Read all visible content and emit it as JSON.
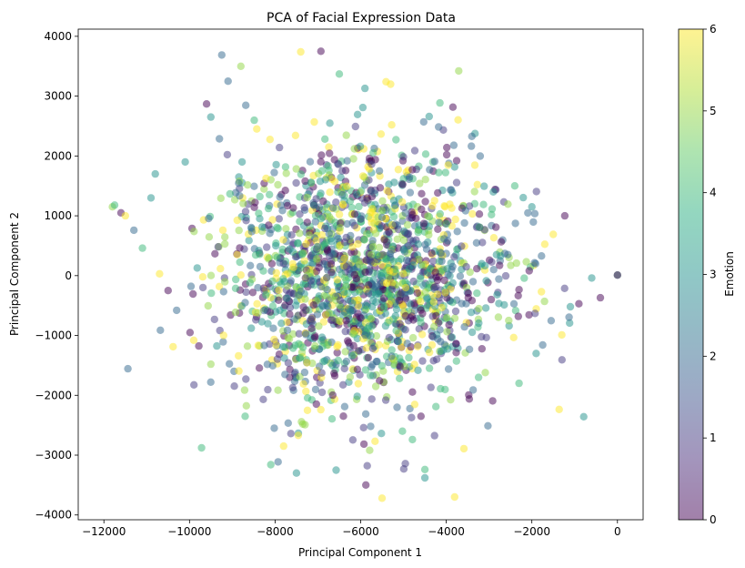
{
  "chart_data": {
    "type": "scatter",
    "title": "PCA of Facial Expression Data",
    "xlabel": "Principal Component 1",
    "ylabel": "Principal Component 2",
    "xlim": [
      -12600,
      600
    ],
    "ylim": [
      -4080,
      4120
    ],
    "x_ticks": [
      -12000,
      -10000,
      -8000,
      -6000,
      -4000,
      -2000,
      0
    ],
    "x_tick_labels": [
      "−12000",
      "−10000",
      "−8000",
      "−6000",
      "−4000",
      "−2000",
      "0"
    ],
    "y_ticks": [
      -4000,
      -3000,
      -2000,
      -1000,
      0,
      1000,
      2000,
      3000,
      4000
    ],
    "y_tick_labels": [
      "−4000",
      "−3000",
      "−2000",
      "−1000",
      "0",
      "1000",
      "2000",
      "3000",
      "4000"
    ],
    "colormap": "viridis",
    "point_alpha": 0.5,
    "grid": false,
    "colorbar": {
      "label": "Emotion",
      "range": [
        0,
        6
      ],
      "ticks": [
        0,
        1,
        2,
        3,
        4,
        5,
        6
      ],
      "tick_labels": [
        "0",
        "1",
        "2",
        "3",
        "4",
        "5",
        "6"
      ]
    },
    "cloud": {
      "approx_points": 1800,
      "center": [
        -6000,
        0
      ],
      "x_extent": [
        -11800,
        0
      ],
      "y_extent": [
        -3700,
        3750
      ],
      "color_values": [
        0,
        1,
        2,
        3,
        4,
        5,
        6
      ]
    },
    "points": [
      {
        "x": -11800,
        "y": 1150,
        "c": 5
      },
      {
        "x": -11750,
        "y": 1180,
        "c": 4
      },
      {
        "x": -11600,
        "y": 1050,
        "c": 0
      },
      {
        "x": -11500,
        "y": 1000,
        "c": 6
      },
      {
        "x": -11300,
        "y": 760,
        "c": 2
      },
      {
        "x": -11100,
        "y": 460,
        "c": 4
      },
      {
        "x": -10900,
        "y": 1300,
        "c": 3
      },
      {
        "x": -10800,
        "y": 1700,
        "c": 3
      },
      {
        "x": -10700,
        "y": 30,
        "c": 6
      },
      {
        "x": -10500,
        "y": -250,
        "c": 0
      },
      {
        "x": -10300,
        "y": -580,
        "c": 2
      },
      {
        "x": -10100,
        "y": 1900,
        "c": 3
      },
      {
        "x": -9900,
        "y": -1080,
        "c": 6
      },
      {
        "x": -9600,
        "y": 2870,
        "c": 0
      },
      {
        "x": -9500,
        "y": 2650,
        "c": 3
      },
      {
        "x": -9500,
        "y": -1480,
        "c": 5
      },
      {
        "x": -9100,
        "y": 3250,
        "c": 2
      },
      {
        "x": -8800,
        "y": 3500,
        "c": 5
      },
      {
        "x": -8700,
        "y": -2350,
        "c": 4
      },
      {
        "x": -8100,
        "y": -3160,
        "c": 4
      },
      {
        "x": -7800,
        "y": -2850,
        "c": 6
      },
      {
        "x": -7500,
        "y": -3300,
        "c": 3
      },
      {
        "x": -7400,
        "y": 3740,
        "c": 6
      },
      {
        "x": -6500,
        "y": 3370,
        "c": 4
      },
      {
        "x": -5900,
        "y": 3130,
        "c": 3
      },
      {
        "x": -5500,
        "y": -3720,
        "c": 6
      },
      {
        "x": -5300,
        "y": 3200,
        "c": 6
      },
      {
        "x": -4500,
        "y": -3240,
        "c": 4
      },
      {
        "x": -4500,
        "y": -3380,
        "c": 3
      },
      {
        "x": -4400,
        "y": 2660,
        "c": 3
      },
      {
        "x": -2900,
        "y": 1400,
        "c": 3
      },
      {
        "x": -2400,
        "y": 1500,
        "c": 4
      },
      {
        "x": -2300,
        "y": -1800,
        "c": 4
      },
      {
        "x": -2000,
        "y": 1150,
        "c": 3
      },
      {
        "x": -1900,
        "y": -1300,
        "c": 3
      },
      {
        "x": -1500,
        "y": 690,
        "c": 6
      },
      {
        "x": -1300,
        "y": -990,
        "c": 6
      },
      {
        "x": -1100,
        "y": -520,
        "c": 3
      },
      {
        "x": -900,
        "y": -470,
        "c": 0
      },
      {
        "x": -600,
        "y": -40,
        "c": 3
      },
      {
        "x": -400,
        "y": -370,
        "c": 0
      },
      {
        "x": 0,
        "y": 10,
        "c": 4
      },
      {
        "x": 0,
        "y": 10,
        "c": 0
      }
    ]
  }
}
